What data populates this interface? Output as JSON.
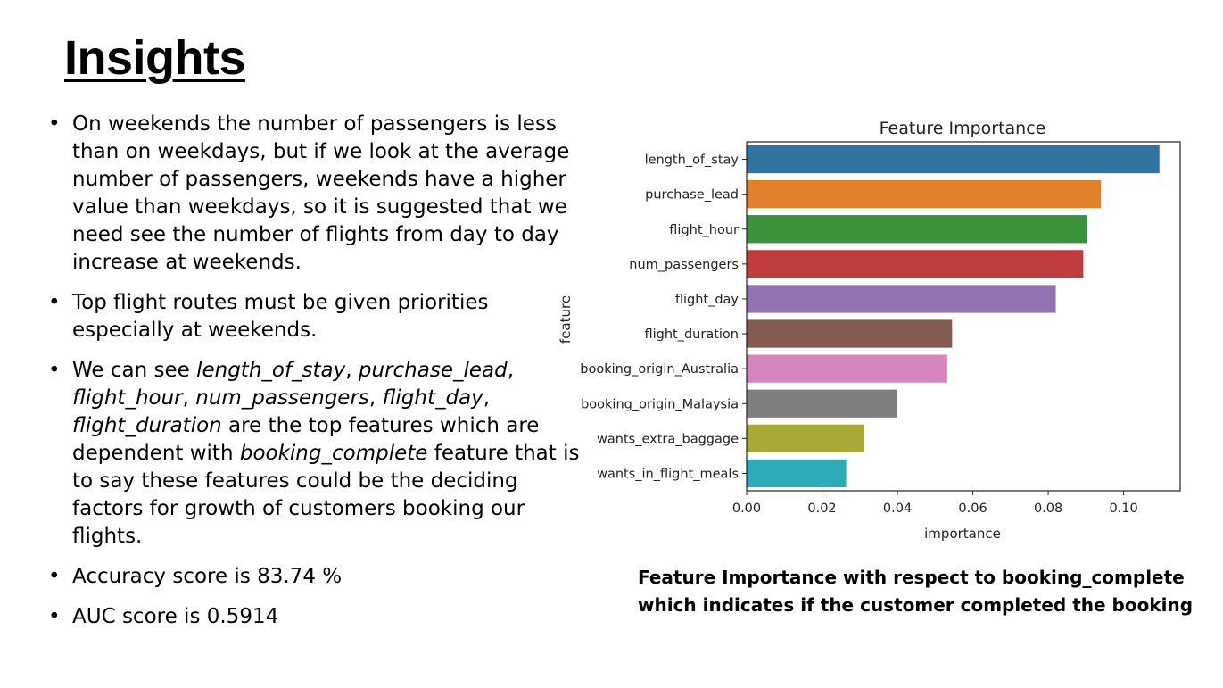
{
  "slide": {
    "title": "Insights",
    "bullets": [
      {
        "parts": [
          {
            "text": "On weekends the number of passengers is less than on weekdays, but if we look at the average number of passengers, weekends have a higher value than weekdays, so it is suggested that we need see the number of flights from day to day increase at weekends.",
            "italic": false
          }
        ]
      },
      {
        "parts": [
          {
            "text": "Top flight routes must be given priorities especially at weekends.",
            "italic": false
          }
        ]
      },
      {
        "parts": [
          {
            "text": "We can see ",
            "italic": false
          },
          {
            "text": "length_of_stay",
            "italic": true
          },
          {
            "text": ", ",
            "italic": false
          },
          {
            "text": "purchase_lead",
            "italic": true
          },
          {
            "text": ", ",
            "italic": false
          },
          {
            "text": "flight_hour",
            "italic": true
          },
          {
            "text": ", ",
            "italic": false
          },
          {
            "text": "num_passengers",
            "italic": true
          },
          {
            "text": ", ",
            "italic": false
          },
          {
            "text": "flight_day",
            "italic": true
          },
          {
            "text": ", ",
            "italic": false
          },
          {
            "text": "flight_duration",
            "italic": true
          },
          {
            "text": " are the top features which are dependent with ",
            "italic": false
          },
          {
            "text": "booking_complete",
            "italic": true
          },
          {
            "text": " feature that is to say these features could be the deciding factors for growth of customers booking our flights.",
            "italic": false
          }
        ]
      },
      {
        "parts": [
          {
            "text": "Accuracy score is 83.74 %",
            "italic": false
          }
        ]
      },
      {
        "parts": [
          {
            "text": "AUC score is 0.5914",
            "italic": false
          }
        ]
      }
    ],
    "caption_lines": [
      "Feature Importance with respect to booking_complete",
      "which indicates if the customer completed the booking"
    ]
  },
  "chart_data": {
    "type": "bar",
    "orientation": "horizontal",
    "title": "Feature Importance",
    "xlabel": "importance",
    "ylabel": "feature",
    "xlim": [
      0,
      0.115
    ],
    "xticks": [
      0.0,
      0.02,
      0.04,
      0.06,
      0.08,
      0.1
    ],
    "xtick_labels": [
      "0.00",
      "0.02",
      "0.04",
      "0.06",
      "0.08",
      "0.10"
    ],
    "grid": false,
    "categories": [
      "length_of_stay",
      "purchase_lead",
      "flight_hour",
      "num_passengers",
      "flight_day",
      "flight_duration",
      "booking_origin_Australia",
      "booking_origin_Malaysia",
      "wants_extra_baggage",
      "wants_in_flight_meals"
    ],
    "values": [
      0.1095,
      0.094,
      0.0902,
      0.0893,
      0.082,
      0.0545,
      0.0532,
      0.0398,
      0.0311,
      0.0264
    ],
    "colors": [
      "#3274a1",
      "#e1812c",
      "#3a923a",
      "#c03d3e",
      "#9372b2",
      "#845b53",
      "#d684bd",
      "#7f7f7f",
      "#a9aa35",
      "#2eabb8"
    ]
  }
}
